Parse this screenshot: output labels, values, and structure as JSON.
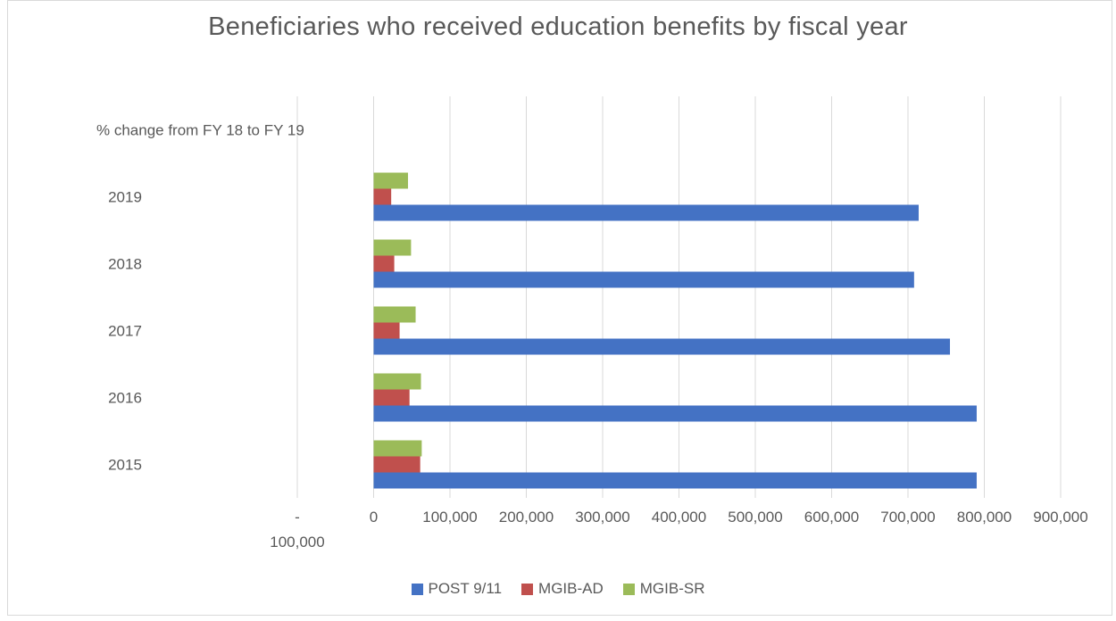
{
  "chart_data": {
    "type": "bar",
    "orientation": "horizontal",
    "title": "Beneficiaries who received education benefits by fiscal year",
    "categories": [
      "2015",
      "2016",
      "2017",
      "2018",
      "2019",
      "% change from FY 18 to FY 19"
    ],
    "series": [
      {
        "name": "POST 9/11",
        "color": "#4472C4",
        "values": [
          790000,
          790000,
          755000,
          708000,
          714000,
          null
        ]
      },
      {
        "name": "MGIB-AD",
        "color": "#C0504D",
        "values": [
          61000,
          47000,
          34000,
          27000,
          23000,
          null
        ]
      },
      {
        "name": "MGIB-SR",
        "color": "#9BBB59",
        "values": [
          63000,
          62000,
          55000,
          49000,
          45000,
          null
        ]
      }
    ],
    "xlim": [
      -100000,
      900000
    ],
    "x_ticks": [
      -100000,
      0,
      100000,
      200000,
      300000,
      400000,
      500000,
      600000,
      700000,
      800000,
      900000
    ],
    "x_tick_labels": [
      "-\n100,000",
      "0",
      "100,000",
      "200,000",
      "300,000",
      "400,000",
      "500,000",
      "600,000",
      "700,000",
      "800,000",
      "900,000"
    ],
    "grid": "vertical",
    "legend_position": "bottom",
    "xlabel": "",
    "ylabel": ""
  }
}
